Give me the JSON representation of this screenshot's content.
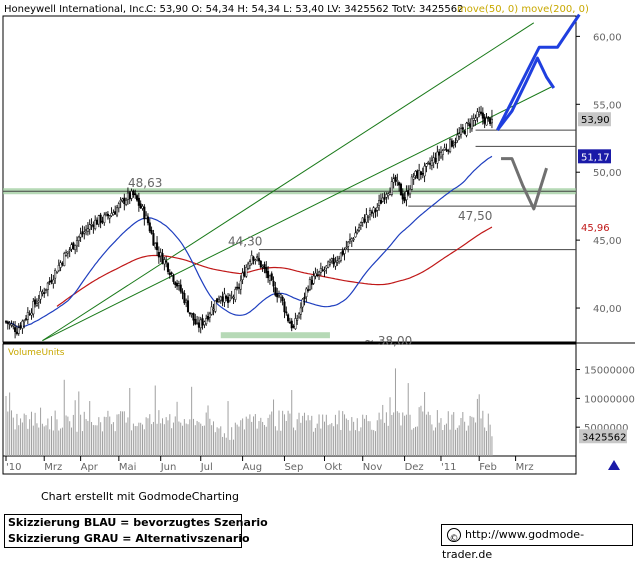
{
  "header": {
    "company": "Honeywell International, Inc.",
    "quote": "C: 53,90 O: 54,34 H: 54,34 L: 53,40 LV: 3425562 TotV: 3425562",
    "ma_labels": "move(50, 0) move(200, 0)"
  },
  "chart_data": {
    "type": "candlestick",
    "title": "Honeywell International, Inc.",
    "x_tick_labels": [
      "'10",
      "Mrz",
      "Apr",
      "Mai",
      "Jun",
      "Jul",
      "Aug",
      "Sep",
      "Okt",
      "Nov",
      "Dez",
      "'11",
      "Feb",
      "Mrz"
    ],
    "y_range": [
      37.5,
      61.5
    ],
    "y_ticks": [
      40,
      45,
      50,
      55,
      60
    ],
    "y_tick_labels": [
      "40,00",
      "45,00",
      "50,00",
      "55,00",
      "60,00"
    ],
    "price_path": [
      [
        0,
        39.0
      ],
      [
        6,
        38.4
      ],
      [
        12,
        39.6
      ],
      [
        18,
        40.7
      ],
      [
        25,
        42.2
      ],
      [
        32,
        43.8
      ],
      [
        40,
        45.2
      ],
      [
        48,
        46.3
      ],
      [
        54,
        46.6
      ],
      [
        60,
        47.2
      ],
      [
        66,
        48.1
      ],
      [
        70,
        48.3
      ],
      [
        75,
        47.2
      ],
      [
        78,
        46.3
      ],
      [
        81,
        45.0
      ],
      [
        84,
        44.0
      ],
      [
        88,
        43.3
      ],
      [
        93,
        42.0
      ],
      [
        97,
        41.0
      ],
      [
        101,
        39.7
      ],
      [
        105,
        38.6
      ],
      [
        109,
        39.1
      ],
      [
        114,
        40.2
      ],
      [
        118,
        41.0
      ],
      [
        122,
        40.4
      ],
      [
        127,
        41.2
      ],
      [
        131,
        42.7
      ],
      [
        135,
        44.0
      ],
      [
        140,
        43.2
      ],
      [
        144,
        42.3
      ],
      [
        147,
        41.4
      ],
      [
        151,
        40.8
      ],
      [
        155,
        39.2
      ],
      [
        158,
        38.5
      ],
      [
        162,
        40.0
      ],
      [
        166,
        41.7
      ],
      [
        170,
        42.3
      ],
      [
        175,
        42.8
      ],
      [
        180,
        43.4
      ],
      [
        185,
        44.1
      ],
      [
        191,
        45.3
      ],
      [
        197,
        46.6
      ],
      [
        203,
        47.2
      ],
      [
        209,
        48.6
      ],
      [
        214,
        49.3
      ],
      [
        219,
        48.0
      ],
      [
        224,
        49.7
      ],
      [
        230,
        50.1
      ],
      [
        235,
        50.9
      ],
      [
        240,
        51.6
      ],
      [
        246,
        52.3
      ],
      [
        251,
        53.0
      ],
      [
        256,
        53.8
      ],
      [
        260,
        54.2
      ],
      [
        264,
        53.8
      ],
      [
        267,
        53.9
      ]
    ],
    "price_last": 53.9,
    "ma50_last": 51.17,
    "ma200_last": 45.96,
    "annotations": [
      {
        "text": "48,63",
        "value": 48.63
      },
      {
        "text": "44,30",
        "value": 44.3
      },
      {
        "text": "47,50",
        "value": 47.5
      },
      {
        "text": "~ 38,00",
        "value": 38.0
      }
    ],
    "horizontal_levels": [
      53.1,
      51.9,
      48.6,
      47.5,
      44.3
    ],
    "support_zones": [
      48.6,
      38.0
    ],
    "scenario_blue": [
      [
        270,
        53.1
      ],
      [
        278,
        54.5
      ],
      [
        286,
        56.7
      ],
      [
        292,
        58.4
      ],
      [
        297,
        57.0
      ],
      [
        301,
        56.2
      ]
    ],
    "scenario_blue_2": [
      [
        270,
        53.1
      ],
      [
        293,
        59.2
      ],
      [
        303,
        59.2
      ],
      [
        315,
        61.6
      ]
    ],
    "scenario_grey": [
      [
        272,
        51.0
      ],
      [
        278,
        51.0
      ],
      [
        284,
        49.0
      ],
      [
        290,
        47.3
      ],
      [
        297,
        50.3
      ]
    ],
    "trend_lines": [
      {
        "from": [
          20,
          37.6
        ],
        "to": [
          290,
          61.0
        ]
      },
      {
        "from": [
          20,
          37.6
        ],
        "to": [
          300,
          56.3
        ]
      }
    ],
    "price_badges": [
      {
        "label": "53,90",
        "value": 53.9,
        "kind": "price"
      },
      {
        "label": "51,17",
        "value": 51.17,
        "kind": "ma50"
      },
      {
        "label": "45,96",
        "value": 45.96,
        "kind": "ma200"
      }
    ],
    "volume": {
      "label": "VolumeUnits",
      "y_ticks": [
        5000000,
        10000000,
        15000000
      ],
      "y_tick_labels": [
        "5000000",
        "10000000",
        "15000000"
      ],
      "y_max": 17000000,
      "last_label": "3425562",
      "last_value": 3425562
    },
    "colors": {
      "price": "#000000",
      "ma50": "#1f3fbf",
      "ma200": "#c01818",
      "trend": "#1a7a1a",
      "scenario_blue": "#1f3fdf",
      "scenario_grey": "#707070",
      "support_zone": "#9dcc9d",
      "volume": "#a0a0a0",
      "label_text": "#666666"
    }
  },
  "footer": {
    "credit": "Chart erstellt mit GodmodeCharting",
    "legend_blue": "Skizzierung BLAU = bevorzugtes Szenario",
    "legend_grey": "Skizzierung GRAU = Alternativszenario",
    "url": "http://www.godmode-trader.de",
    "copyright_icon": "copyright-icon"
  }
}
